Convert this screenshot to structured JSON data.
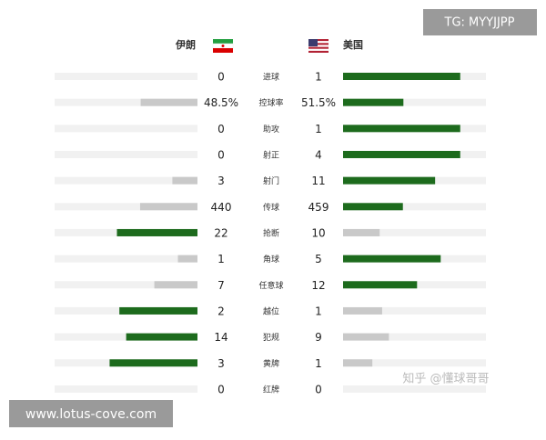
{
  "watermark_top": "TG: MYYJJPP",
  "watermark_bottom": "www.lotus-cove.com",
  "credit": "知乎 @懂球哥哥",
  "teams": {
    "left": "伊朗",
    "right": "美国"
  },
  "colors": {
    "leader": "#1d6b1d",
    "trailer": "#c9c9c9",
    "track": "#f1f1f1"
  },
  "rows": [
    {
      "label": "进球",
      "left": 0,
      "right": 1
    },
    {
      "label": "控球率",
      "left": {
        "value": 48.5,
        "label": "48.5%"
      },
      "right": {
        "value": 51.5,
        "label": "51.5%"
      }
    },
    {
      "label": "助攻",
      "left": 0,
      "right": 1
    },
    {
      "label": "射正",
      "left": 0,
      "right": 4
    },
    {
      "label": "射门",
      "left": 3,
      "right": 11
    },
    {
      "label": "传球",
      "left": 440,
      "right": 459
    },
    {
      "label": "抢断",
      "left": 22,
      "right": 10
    },
    {
      "label": "角球",
      "left": 1,
      "right": 5
    },
    {
      "label": "任意球",
      "left": 7,
      "right": 12
    },
    {
      "label": "越位",
      "left": 2,
      "right": 1
    },
    {
      "label": "犯规",
      "left": 14,
      "right": 9
    },
    {
      "label": "黄牌",
      "left": 3,
      "right": 1
    },
    {
      "label": "红牌",
      "left": 0,
      "right": 0
    }
  ]
}
